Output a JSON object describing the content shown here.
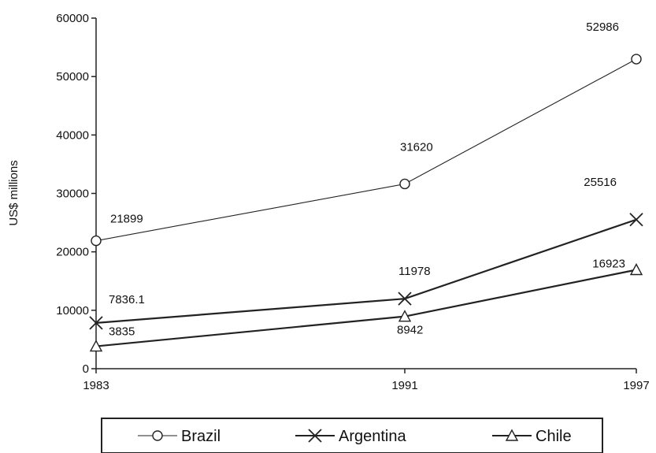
{
  "chart_data": {
    "type": "line",
    "title": "",
    "xlabel": "",
    "ylabel": "US$ millions",
    "x": [
      1983,
      1991,
      1997
    ],
    "x_tick_labels": [
      "1983",
      "1991",
      "1997"
    ],
    "ylim": [
      0,
      60000
    ],
    "y_ticks": [
      0,
      10000,
      20000,
      30000,
      40000,
      50000,
      60000
    ],
    "y_tick_labels": [
      "0",
      "10000",
      "20000",
      "30000",
      "40000",
      "50000",
      "60000"
    ],
    "grid": false,
    "legend_position": "bottom",
    "series": [
      {
        "name": "Brazil",
        "marker": "circle",
        "line_style": "thin",
        "values": [
          21899,
          31620,
          52986
        ],
        "labels": [
          "21899",
          "31620",
          "52986"
        ]
      },
      {
        "name": "Argentina",
        "marker": "cross",
        "line_style": "thick",
        "values": [
          7836.1,
          11978,
          25516
        ],
        "labels": [
          "7836.1",
          "11978",
          "25516"
        ]
      },
      {
        "name": "Chile",
        "marker": "triangle",
        "line_style": "thick",
        "values": [
          3835,
          8942,
          16923
        ],
        "labels": [
          "3835",
          "8942",
          "16923"
        ]
      }
    ]
  }
}
